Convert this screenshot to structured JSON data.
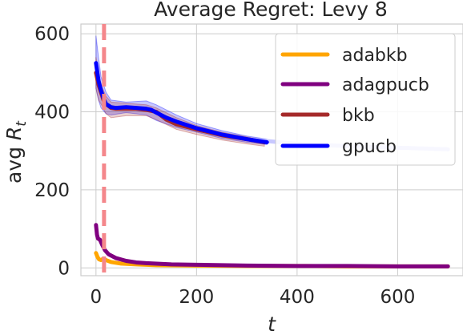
{
  "chart_data": {
    "type": "line",
    "title": "Average Regret: Levy 8",
    "xlabel": "t",
    "ylabel": "avg R_t",
    "ylabel_main": "avg ",
    "ylabel_var": "R",
    "ylabel_sub": "t",
    "xlim": [
      -30,
      730
    ],
    "ylim": [
      -20,
      625
    ],
    "xticks": [
      0,
      200,
      400,
      600
    ],
    "yticks": [
      0,
      200,
      400,
      600
    ],
    "xtick_labels": [
      "0",
      "200",
      "400",
      "600"
    ],
    "ytick_labels": [
      "0",
      "200",
      "400",
      "600"
    ],
    "grid": true,
    "legend_position": "top-right",
    "vline": {
      "x": 16,
      "color": "#f4878b",
      "style": "dashed"
    },
    "series": [
      {
        "name": "adabkb",
        "color": "#ffa500",
        "x": [
          0,
          3,
          6,
          10,
          15,
          20,
          30,
          50,
          80,
          120,
          200,
          300,
          400,
          500,
          600,
          700
        ],
        "y": [
          38,
          28,
          22,
          20,
          24,
          20,
          15,
          11,
          9,
          7,
          6,
          5,
          5,
          4,
          4,
          4
        ]
      },
      {
        "name": "adagpucb",
        "color": "#800080",
        "x": [
          0,
          2,
          4,
          8,
          12,
          18,
          25,
          40,
          60,
          80,
          100,
          150,
          200,
          300,
          400,
          500,
          600,
          700
        ],
        "y": [
          110,
          85,
          75,
          72,
          60,
          45,
          35,
          25,
          18,
          14,
          12,
          9,
          8,
          6,
          5,
          5,
          4,
          4
        ]
      },
      {
        "name": "bkb",
        "color": "#a52a2a",
        "x": [
          0,
          5,
          10,
          15,
          20,
          30,
          40,
          60,
          80,
          100,
          120,
          140,
          160,
          200,
          250,
          300,
          335
        ],
        "y": [
          500,
          470,
          450,
          430,
          420,
          410,
          408,
          408,
          408,
          405,
          400,
          380,
          368,
          355,
          340,
          330,
          322
        ]
      },
      {
        "name": "gpucb",
        "color": "#0000ff",
        "x": [
          0,
          5,
          10,
          15,
          20,
          30,
          40,
          60,
          80,
          100,
          110,
          120,
          140,
          160,
          200,
          250,
          300,
          340,
          400,
          500,
          600,
          700
        ],
        "y": [
          525,
          480,
          455,
          435,
          420,
          412,
          410,
          412,
          410,
          408,
          405,
          398,
          385,
          375,
          358,
          342,
          330,
          322,
          318,
          312,
          308,
          304
        ]
      }
    ],
    "bands": [
      {
        "series": "gpucb",
        "color": "#0000ff",
        "x": [
          0,
          5,
          10,
          20,
          30,
          60,
          100,
          120,
          160,
          200,
          250,
          300,
          340
        ],
        "upper": [
          595,
          540,
          490,
          450,
          430,
          425,
          428,
          418,
          392,
          370,
          352,
          338,
          330
        ],
        "lower": [
          460,
          430,
          410,
          395,
          392,
          398,
          392,
          378,
          360,
          348,
          332,
          322,
          316
        ]
      },
      {
        "series": "bkb",
        "color": "#a52a2a",
        "x": [
          0,
          5,
          10,
          20,
          30,
          60,
          100,
          120,
          160,
          200,
          250,
          300,
          335
        ],
        "upper": [
          540,
          500,
          470,
          440,
          425,
          422,
          418,
          410,
          385,
          365,
          348,
          336,
          328
        ],
        "lower": [
          460,
          430,
          420,
          395,
          385,
          390,
          390,
          380,
          355,
          342,
          328,
          318,
          312
        ]
      }
    ],
    "faded_tail": {
      "series": "gpucb",
      "color": "#c8c8ff",
      "x": [
        300,
        400,
        500,
        600,
        700
      ],
      "y": [
        330,
        318,
        312,
        308,
        304
      ]
    }
  }
}
